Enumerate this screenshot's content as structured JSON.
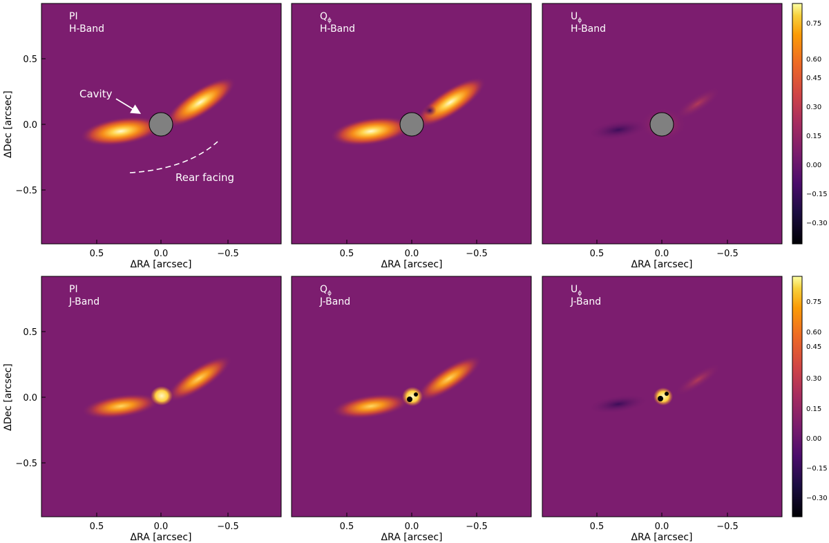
{
  "figure": {
    "background": "#ffffff",
    "image_base_color": "#7c1d6f"
  },
  "chart_data": [
    {
      "type": "heatmap",
      "panel": "H-Band PI",
      "label_line1": "PI",
      "label_line2": "H-Band",
      "xlabel": "ΔRA [arcsec]",
      "ylabel": "ΔDec [arcsec]",
      "xlim": [
        0.9,
        -0.9
      ],
      "ylim": [
        -0.9,
        0.9
      ],
      "xticks": [
        "0.5",
        "0.0",
        "−0.5"
      ],
      "yticks": [
        "0.5",
        "0.0",
        "−0.5"
      ],
      "mask": {
        "present": true,
        "color": "#808080",
        "radius_arcsec": 0.09
      },
      "annotations": [
        "Cavity",
        "Rear facing"
      ]
    },
    {
      "type": "heatmap",
      "panel": "H-Band Qphi",
      "label_line1": "Q",
      "label_sub": "ϕ",
      "label_line2": "H-Band",
      "xlabel": "ΔRA [arcsec]",
      "xlim": [
        0.9,
        -0.9
      ],
      "ylim": [
        -0.9,
        0.9
      ],
      "xticks": [
        "0.5",
        "0.0",
        "−0.5"
      ],
      "mask": {
        "present": true,
        "color": "#808080",
        "radius_arcsec": 0.09
      }
    },
    {
      "type": "heatmap",
      "panel": "H-Band Uphi",
      "label_line1": "U",
      "label_sub": "ϕ",
      "label_line2": "H-Band",
      "xlabel": "ΔRA [arcsec]",
      "xlim": [
        0.9,
        -0.9
      ],
      "ylim": [
        -0.9,
        0.9
      ],
      "xticks": [
        "0.5",
        "0.0",
        "−0.5"
      ],
      "mask": {
        "present": true,
        "color": "#808080",
        "radius_arcsec": 0.09
      },
      "colorbar": {
        "ticks": [
          "0.75",
          "0.60",
          "0.45",
          "0.30",
          "0.15",
          "0.00",
          "−0.15",
          "−0.30"
        ],
        "colormap": "inferno",
        "range": [
          -0.4,
          0.8
        ]
      }
    },
    {
      "type": "heatmap",
      "panel": "J-Band PI",
      "label_line1": "PI",
      "label_line2": "J-Band",
      "xlabel": "ΔRA [arcsec]",
      "ylabel": "ΔDec [arcsec]",
      "xlim": [
        0.9,
        -0.9
      ],
      "ylim": [
        -0.9,
        0.9
      ],
      "xticks": [
        "0.5",
        "0.0",
        "−0.5"
      ],
      "yticks": [
        "0.5",
        "0.0",
        "−0.5"
      ]
    },
    {
      "type": "heatmap",
      "panel": "J-Band Qphi",
      "label_line1": "Q",
      "label_sub": "ϕ",
      "label_line2": "J-Band",
      "xlabel": "ΔRA [arcsec]",
      "xlim": [
        0.9,
        -0.9
      ],
      "ylim": [
        -0.9,
        0.9
      ],
      "xticks": [
        "0.5",
        "0.0",
        "−0.5"
      ]
    },
    {
      "type": "heatmap",
      "panel": "J-Band Uphi",
      "label_line1": "U",
      "label_sub": "ϕ",
      "label_line2": "J-Band",
      "xlabel": "ΔRA [arcsec]",
      "xlim": [
        0.9,
        -0.9
      ],
      "ylim": [
        -0.9,
        0.9
      ],
      "xticks": [
        "0.5",
        "0.0",
        "−0.5"
      ],
      "colorbar": {
        "ticks": [
          "0.75",
          "0.60",
          "0.45",
          "0.30",
          "0.15",
          "0.00",
          "−0.15",
          "−0.30"
        ],
        "colormap": "inferno",
        "range": [
          -0.4,
          0.8
        ]
      }
    }
  ]
}
